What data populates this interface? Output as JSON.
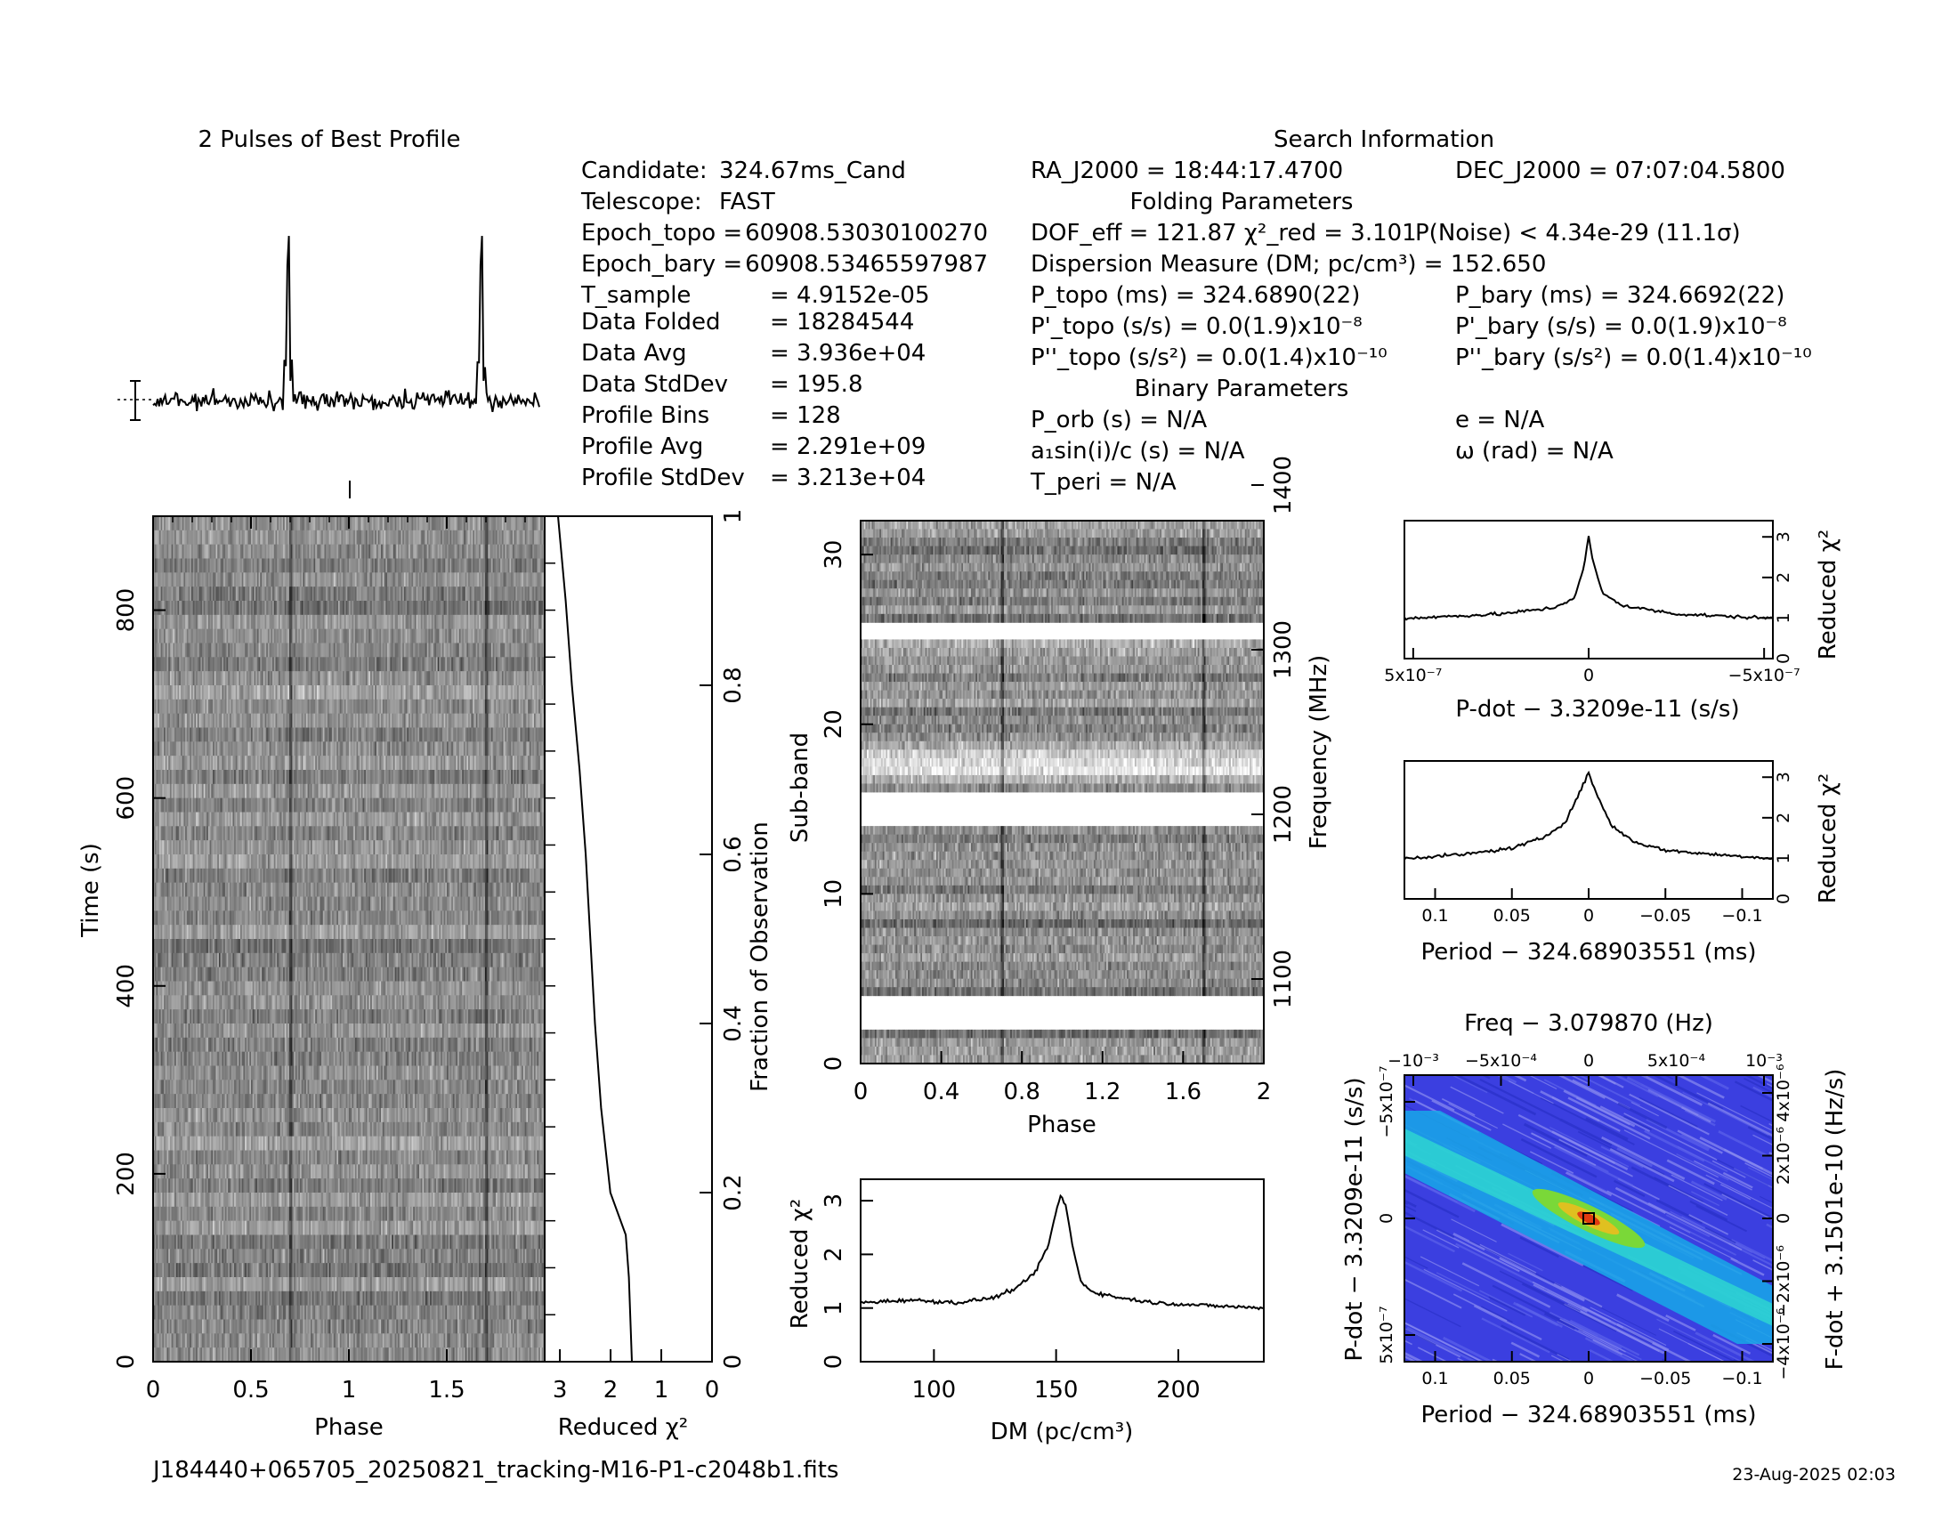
{
  "header": {
    "profile_title": "2 Pulses of Best Profile",
    "search_title": "Search Information"
  },
  "info": {
    "left": [
      {
        "label": "Candidate:",
        "value": "324.67ms_Cand"
      },
      {
        "label": "Telescope:",
        "value": "FAST"
      },
      {
        "label": "Epoch_topo =",
        "value": "60908.53030100270"
      },
      {
        "label": "Epoch_bary =",
        "value": "60908.53465597987"
      },
      {
        "label": "T_sample",
        "value": "=  4.9152e-05"
      },
      {
        "label": "Data Folded",
        "value": "=  18284544"
      },
      {
        "label": "Data Avg",
        "value": "=  3.936e+04"
      },
      {
        "label": "Data StdDev",
        "value": "=  195.8"
      },
      {
        "label": "Profile Bins",
        "value": "=  128"
      },
      {
        "label": "Profile Avg",
        "value": "=  2.291e+09"
      },
      {
        "label": "Profile StdDev",
        "value": "=  3.213e+04"
      }
    ],
    "ra": "RA_J2000 = 18:44:17.4700",
    "dec": "DEC_J2000 = 07:07:04.5800",
    "folding_title": "Folding Parameters",
    "dof": "DOF_eff = 121.87   χ²_red = 3.101",
    "pnoise": "P(Noise) < 4.34e-29   (11.1σ)",
    "dm": "Dispersion Measure (DM; pc/cm³) = 152.650",
    "ptopo": "P_topo (ms) =  324.6890(22)",
    "pbary": "P_bary (ms) =  324.6692(22)",
    "pdtopo": "P'_topo (s/s) = 0.0(1.9)x10⁻⁸",
    "pdbary": "P'_bary (s/s) = 0.0(1.9)x10⁻⁸",
    "pddtopo": "P''_topo (s/s²) = 0.0(1.4)x10⁻¹⁰",
    "pddbary": "P''_bary (s/s²) = 0.0(1.4)x10⁻¹⁰",
    "binary_title": "Binary Parameters",
    "porb": "P_orb (s) = N/A",
    "ecc": "e = N/A",
    "asini": "a₁sin(i)/c (s) = N/A",
    "omega": "ω (rad) = N/A",
    "tperi": "T_peri = N/A"
  },
  "footer": {
    "filename": "J184440+065705_20250821_tracking-M16-P1-c2048b1.fits",
    "date": "23-Aug-2025 02:03"
  },
  "axes": {
    "time_ylabel": "Time (s)",
    "phase_xlabel": "Phase",
    "chi2_xlabel": "Reduced χ²",
    "frac_ylabel": "Fraction of Observation",
    "subband_ylabel": "Sub-band",
    "freq_ylabel": "Frequency (MHz)",
    "subband_xlabel": "Phase",
    "dm_xlabel": "DM (pc/cm³)",
    "dm_ylabel": "Reduced χ²",
    "pdot_xlabel": "P-dot − 3.3209e-11 (s/s)",
    "pdot_ylabel": "Reduced χ²",
    "period_xlabel": "Period − 324.68903551 (ms)",
    "period_ylabel": "Reduced χ²",
    "freq_title": "Freq − 3.079870 (Hz)",
    "ppd_xlabel": "Period − 324.68903551 (ms)",
    "ppd_ylabel": "P-dot − 3.3209e-11 (s/s)",
    "ppd_ylabel2": "F-dot + 3.1501e-10 (Hz/s)"
  },
  "chart_data": [
    {
      "type": "line",
      "name": "profile",
      "title": "2 Pulses of Best Profile",
      "x_range": [
        0,
        2
      ],
      "peaks": [
        {
          "phase": 0.7,
          "value": 1.0
        },
        {
          "phase": 1.7,
          "value": 1.0
        }
      ]
    },
    {
      "type": "heatmap",
      "name": "time-phase",
      "xlabel": "Phase",
      "ylabel": "Time (s)",
      "xlim": [
        0,
        2
      ],
      "ylim": [
        0,
        900
      ],
      "xticks": [
        "0",
        "0.5",
        "1",
        "1.5"
      ],
      "yticks": [
        "0",
        "200",
        "400",
        "600",
        "800"
      ]
    },
    {
      "type": "line",
      "name": "chi2-vs-time",
      "xlabel": "Reduced χ²",
      "ylabel": "Fraction of Observation",
      "xticks": [
        "3",
        "2",
        "1",
        "0"
      ],
      "yticks": [
        "0",
        "0.2",
        "0.4",
        "0.6",
        "0.8",
        "1"
      ],
      "points": [
        [
          0.0,
          1.0
        ],
        [
          0.05,
          0.9
        ],
        [
          0.09,
          0.8
        ],
        [
          0.14,
          0.7
        ],
        [
          0.18,
          0.6
        ],
        [
          0.21,
          0.5
        ],
        [
          0.24,
          0.4
        ],
        [
          0.28,
          0.3
        ],
        [
          0.34,
          0.2
        ],
        [
          0.44,
          0.15
        ],
        [
          0.46,
          0.1
        ],
        [
          0.48,
          0.0
        ]
      ]
    },
    {
      "type": "heatmap",
      "name": "subband-phase",
      "xlabel": "Phase",
      "ylabel": "Sub-band",
      "y2label": "Frequency (MHz)",
      "xlim": [
        0,
        2
      ],
      "ylim": [
        0,
        32
      ],
      "xticks": [
        "0",
        "0.4",
        "0.8",
        "1.2",
        "1.6",
        "2"
      ],
      "yticks": [
        "0",
        "10",
        "20",
        "30"
      ],
      "y2ticks": [
        "1100",
        "1200",
        "1300",
        "1400"
      ],
      "blank_bands": [
        [
          2,
          4
        ],
        [
          14,
          16
        ],
        [
          25,
          26
        ]
      ]
    },
    {
      "type": "line",
      "name": "dm-curve",
      "xlabel": "DM (pc/cm³)",
      "ylabel": "Reduced χ²",
      "xlim": [
        70,
        235
      ],
      "ylim": [
        0,
        3.4
      ],
      "xticks": [
        "100",
        "150",
        "200"
      ],
      "yticks": [
        "0",
        "1",
        "2",
        "3"
      ],
      "x": [
        70,
        90,
        110,
        125,
        135,
        142,
        147,
        150,
        152,
        154,
        157,
        160,
        165,
        175,
        190,
        210,
        235
      ],
      "y": [
        1.1,
        1.15,
        1.1,
        1.2,
        1.4,
        1.7,
        2.2,
        2.8,
        3.1,
        2.9,
        2.1,
        1.5,
        1.3,
        1.2,
        1.1,
        1.05,
        1.0
      ]
    },
    {
      "type": "line",
      "name": "pdot-curve",
      "xlabel": "P-dot − 3.3209e-11 (s/s)",
      "ylabel": "Reduced χ²",
      "xticks": [
        "5x10⁻⁷",
        "0",
        "−5x10⁻⁷"
      ],
      "yticks": [
        "0",
        "1",
        "2",
        "3"
      ],
      "x": [
        -1,
        -0.5,
        -0.2,
        -0.08,
        -0.03,
        0,
        0.03,
        0.08,
        0.2,
        0.5,
        1
      ],
      "y": [
        1.0,
        1.1,
        1.3,
        1.6,
        2.3,
        3.0,
        2.2,
        1.5,
        1.25,
        1.1,
        1.0
      ]
    },
    {
      "type": "line",
      "name": "period-curve",
      "xlabel": "Period − 324.68903551 (ms)",
      "ylabel": "Reduced χ²",
      "xticks": [
        "0.1",
        "0.05",
        "0",
        "−0.05",
        "−0.1"
      ],
      "yticks": [
        "0",
        "1",
        "2",
        "3"
      ],
      "x": [
        0.12,
        0.08,
        0.05,
        0.03,
        0.015,
        0.005,
        0,
        -0.005,
        -0.015,
        -0.03,
        -0.05,
        -0.08,
        -0.12
      ],
      "y": [
        1.0,
        1.1,
        1.25,
        1.5,
        1.9,
        2.7,
        3.1,
        2.6,
        1.8,
        1.4,
        1.2,
        1.1,
        1.0
      ]
    },
    {
      "type": "heatmap",
      "name": "p-pdot",
      "title": "Freq − 3.079870 (Hz)",
      "xlabel": "Period − 324.68903551 (ms)",
      "ylabel": "P-dot − 3.3209e-11 (s/s)",
      "y2label": "F-dot + 3.1501e-10 (Hz/s)",
      "xticks": [
        "0.1",
        "0.05",
        "0",
        "−0.05",
        "−0.1"
      ],
      "x2ticks": [
        "−10⁻³",
        "−5x10⁻⁴",
        "0",
        "5x10⁻⁴",
        "10⁻³"
      ],
      "yticks": [
        "−5x10⁻⁷",
        "0",
        "5x10⁻⁷"
      ],
      "y2ticks": [
        "4x10⁻⁶",
        "2x10⁻⁶",
        "0",
        "−2x10⁻⁶",
        "−4x10⁻⁶"
      ]
    }
  ]
}
